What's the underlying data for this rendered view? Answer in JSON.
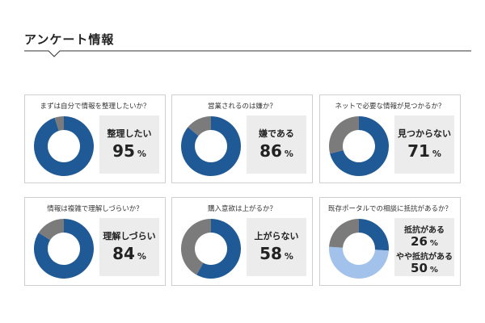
{
  "section": {
    "title": "アンケート情報"
  },
  "colors": {
    "primary": "#1f5a96",
    "remainder": "#7b7b7b",
    "light_blue": "#a3c2eb",
    "result_box": "#ececec",
    "card_border": "#cfcfcf"
  },
  "chart_data": [
    {
      "type": "pie",
      "title": "まずは自分で情報を整理したいか？",
      "labels": [
        "整理したい",
        ""
      ],
      "values": [
        95,
        5
      ],
      "result_label": "整理したい",
      "result_value": "95",
      "unit": "%"
    },
    {
      "type": "pie",
      "title": "営業されるのは嫌か？",
      "labels": [
        "嫌である",
        ""
      ],
      "values": [
        86,
        14
      ],
      "result_label": "嫌である",
      "result_value": "86",
      "unit": "%"
    },
    {
      "type": "pie",
      "title": "ネットで必要な情報が見つかるか？",
      "labels": [
        "見つからない",
        ""
      ],
      "values": [
        71,
        29
      ],
      "result_label": "見つからない",
      "result_value": "71",
      "unit": "%"
    },
    {
      "type": "pie",
      "title": "情報は複雑で理解しづらいか？",
      "labels": [
        "理解しづらい",
        ""
      ],
      "values": [
        84,
        16
      ],
      "result_label": "理解しづらい",
      "result_value": "84",
      "unit": "%"
    },
    {
      "type": "pie",
      "title": "購入意欲は上がるか？",
      "labels": [
        "上がらない",
        ""
      ],
      "values": [
        58,
        42
      ],
      "result_label": "上がらない",
      "result_value": "58",
      "unit": "%"
    },
    {
      "type": "pie",
      "title": "既存ポータルでの相談に抵抗があるか？",
      "labels": [
        "抵抗がある",
        "やや抵抗がある",
        ""
      ],
      "values": [
        26,
        50,
        24
      ],
      "result_label": "抵抗がある",
      "result_value": "26",
      "result_label_2": "やや抵抗がある",
      "result_value_2": "50",
      "unit": "%"
    }
  ]
}
